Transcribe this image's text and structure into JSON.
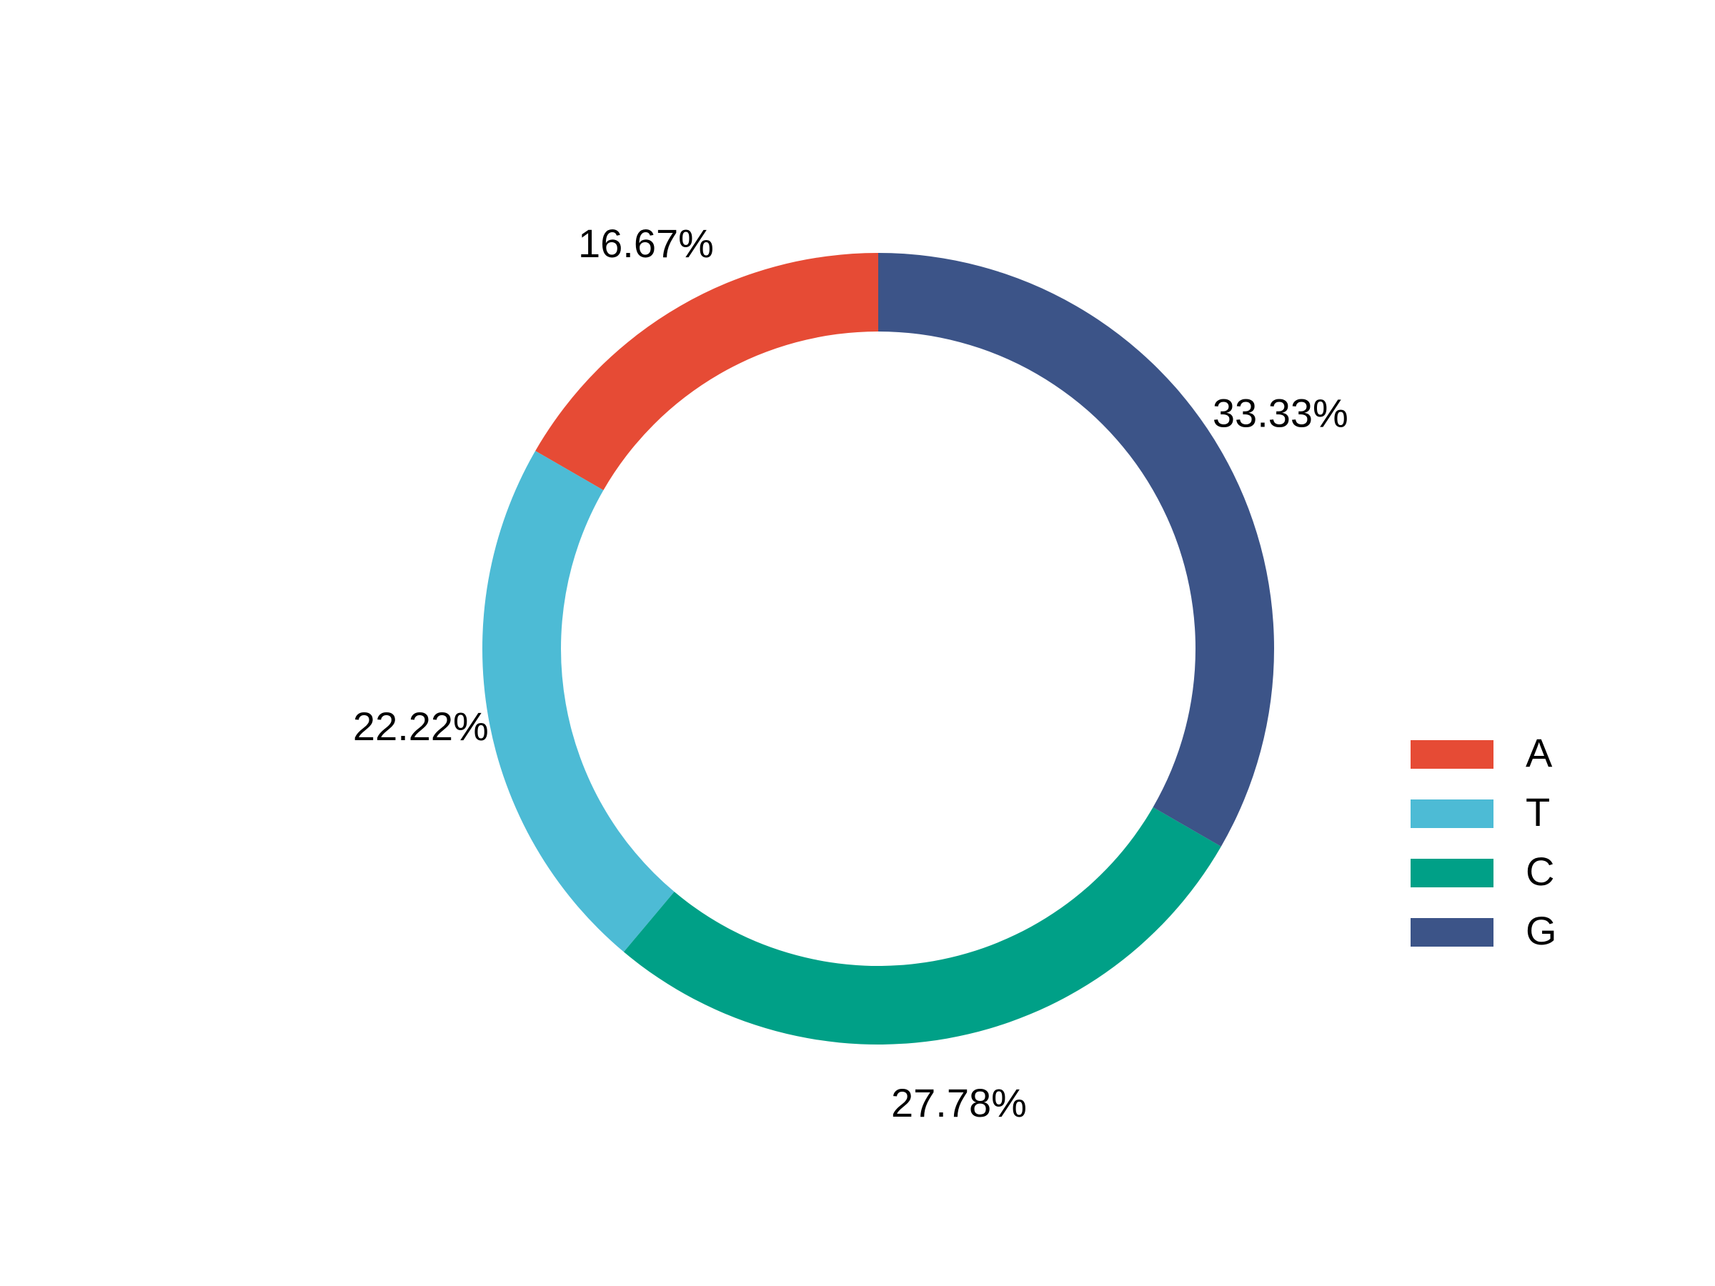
{
  "chart_data": {
    "type": "donut",
    "categories": [
      "A",
      "T",
      "C",
      "G"
    ],
    "values": [
      16.67,
      22.22,
      27.78,
      33.33
    ],
    "value_labels": [
      "16.67%",
      "22.22%",
      "27.78%",
      "33.33%"
    ],
    "colors": [
      "#e64b35",
      "#4dbbd5",
      "#00a087",
      "#3c5488"
    ],
    "legend": "right"
  }
}
